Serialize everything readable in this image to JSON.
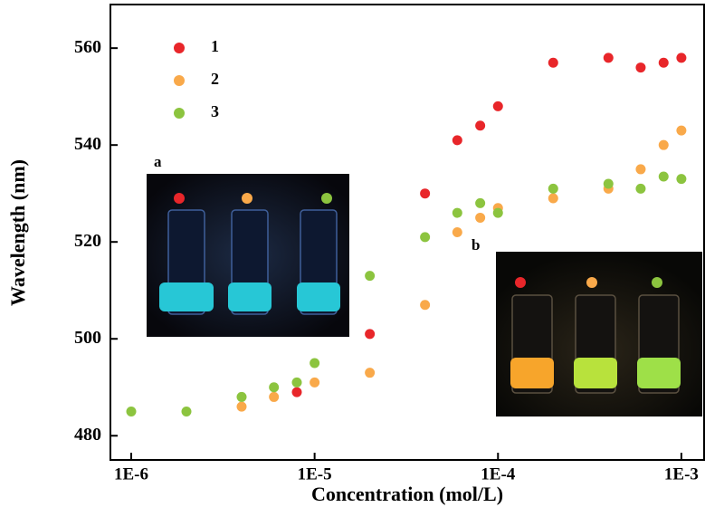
{
  "chart_data": {
    "type": "scatter",
    "xlabel": "Concentration (mol/L)",
    "ylabel": "Wavelength (nm)",
    "xscale": "log",
    "xlim": [
      7.7e-07,
      0.00133
    ],
    "ylim": [
      475,
      569
    ],
    "xticks": [
      {
        "value": 1e-06,
        "label": "1E-6"
      },
      {
        "value": 1e-05,
        "label": "1E-5"
      },
      {
        "value": 0.0001,
        "label": "1E-4"
      },
      {
        "value": 0.001,
        "label": "1E-3"
      }
    ],
    "yticks": [
      480,
      500,
      520,
      540,
      560
    ],
    "legend": "top-left",
    "series": [
      {
        "name": "1",
        "color": "#e8262a",
        "x": [
          8e-06,
          2e-05,
          4e-05,
          6e-05,
          8e-05,
          0.0001,
          0.0002,
          0.0004,
          0.0006,
          0.0008,
          0.001
        ],
        "values": [
          489,
          501,
          530,
          541,
          544,
          548,
          557,
          558,
          556,
          557,
          558
        ]
      },
      {
        "name": "2",
        "color": "#f9a94a",
        "x": [
          4e-06,
          6e-06,
          1e-05,
          2e-05,
          4e-05,
          6e-05,
          8e-05,
          0.0001,
          0.0002,
          0.0004,
          0.0006,
          0.0008,
          0.001
        ],
        "values": [
          486,
          488,
          491,
          493,
          507,
          522,
          525,
          527,
          529,
          531,
          535,
          540,
          543
        ]
      },
      {
        "name": "3",
        "color": "#8cc43f",
        "x": [
          1e-06,
          2e-06,
          4e-06,
          6e-06,
          8e-06,
          1e-05,
          2e-05,
          4e-05,
          6e-05,
          8e-05,
          0.0001,
          0.0002,
          0.0004,
          0.0006,
          0.0008,
          0.001
        ],
        "values": [
          485,
          485,
          488,
          490,
          491,
          495,
          513,
          521,
          526,
          528,
          526,
          531,
          532,
          531,
          533.5,
          533
        ]
      }
    ],
    "insets": [
      {
        "label": "a"
      },
      {
        "label": "b"
      }
    ]
  }
}
